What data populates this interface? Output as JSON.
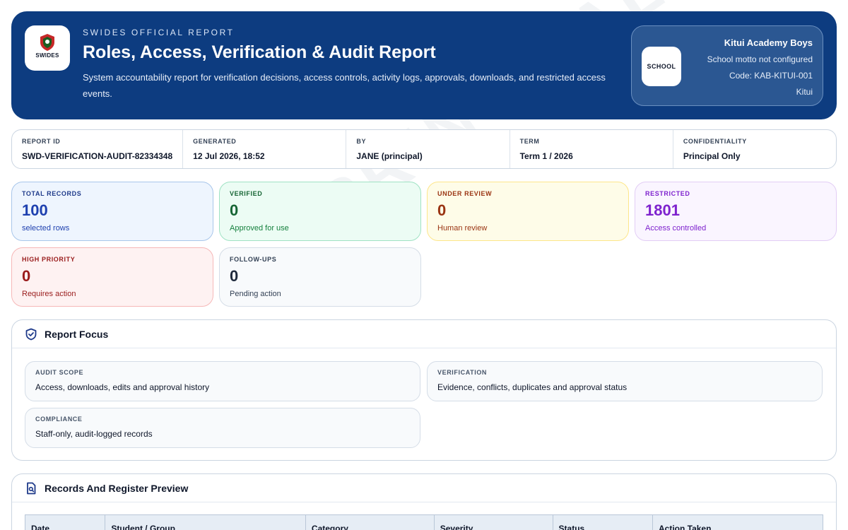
{
  "watermark": "PRINCIPAL ONLY",
  "header": {
    "logo_text": "SWIDES",
    "kicker": "SWIDES OFFICIAL REPORT",
    "title": "Roles, Access, Verification & Audit Report",
    "subtitle": "System accountability report for verification decisions, access controls, activity logs, approvals, downloads, and restricted access events.",
    "bg_color": "#0d3c80"
  },
  "school": {
    "badge": "SCHOOL",
    "name": "Kitui Academy Boys",
    "motto": "School motto not configured",
    "code": "Code: KAB-KITUI-001",
    "location": "Kitui"
  },
  "meta": [
    {
      "label": "REPORT ID",
      "value": "SWD-VERIFICATION-AUDIT-82334348"
    },
    {
      "label": "GENERATED",
      "value": "12 Jul 2026, 18:52"
    },
    {
      "label": "BY",
      "value": "JANE (principal)"
    },
    {
      "label": "TERM",
      "value": "Term 1 / 2026"
    },
    {
      "label": "CONFIDENTIALITY",
      "value": "Principal Only"
    }
  ],
  "stats": [
    {
      "label": "TOTAL RECORDS",
      "value": "100",
      "note": "selected rows",
      "color": "#1e40af"
    },
    {
      "label": "VERIFIED",
      "value": "0",
      "note": "Approved for use",
      "color": "#166534"
    },
    {
      "label": "UNDER REVIEW",
      "value": "0",
      "note": "Human review",
      "color": "#9a3412"
    },
    {
      "label": "RESTRICTED",
      "value": "1801",
      "note": "Access controlled",
      "color": "#7e22ce"
    },
    {
      "label": "HIGH PRIORITY",
      "value": "0",
      "note": "Requires action",
      "color": "#991b1b"
    },
    {
      "label": "FOLLOW-UPS",
      "value": "0",
      "note": "Pending action",
      "color": "#1e293b"
    }
  ],
  "focus": {
    "title": "Report Focus",
    "icon": "shield-check-icon",
    "cards": [
      {
        "label": "AUDIT SCOPE",
        "value": "Access, downloads, edits and approval history"
      },
      {
        "label": "VERIFICATION",
        "value": "Evidence, conflicts, duplicates and approval status"
      },
      {
        "label": "COMPLIANCE",
        "value": "Staff-only, audit-logged records"
      }
    ]
  },
  "records": {
    "title": "Records And Register Preview",
    "icon": "document-search-icon",
    "columns": [
      "Date",
      "Student / Group",
      "Category",
      "Severity",
      "Status",
      "Action Taken"
    ]
  }
}
